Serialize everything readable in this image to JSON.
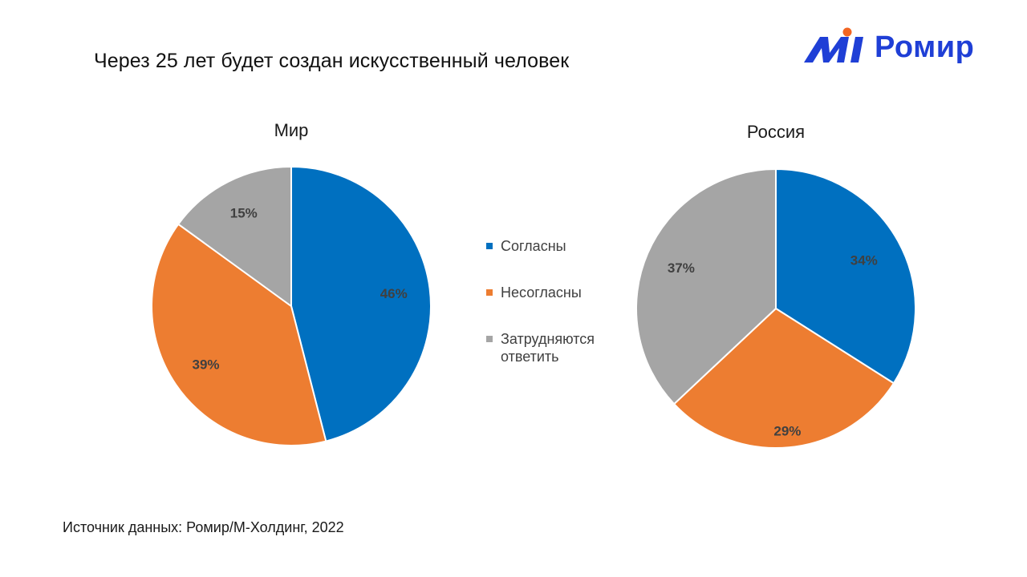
{
  "slide": {
    "title": "Через 25 лет будет создан искусственный человек",
    "source": "Источник данных: Ромир/М-Холдинг, 2022"
  },
  "logo": {
    "text": "Ромир",
    "icon": "romir-logo-icon",
    "mark_color": "#1f3fd6",
    "dot_color": "#f26522"
  },
  "legend": {
    "items": [
      {
        "label": "Согласны",
        "color": "#0070C0"
      },
      {
        "label": "Несогласны",
        "color": "#ED7D31"
      },
      {
        "label": "Затрудняются ответить",
        "color": "#A5A5A5"
      }
    ]
  },
  "chart_data": [
    {
      "type": "pie",
      "title": "Мир",
      "categories": [
        "Согласны",
        "Несогласны",
        "Затрудняются ответить"
      ],
      "values": [
        46,
        39,
        15
      ],
      "labels": [
        "46%",
        "39%",
        "15%"
      ],
      "colors": [
        "#0070C0",
        "#ED7D31",
        "#A5A5A5"
      ],
      "legend": "center-right"
    },
    {
      "type": "pie",
      "title": "Россия",
      "categories": [
        "Согласны",
        "Несогласны",
        "Затрудняются ответить"
      ],
      "values": [
        34,
        29,
        37
      ],
      "labels": [
        "34%",
        "29%",
        "37%"
      ],
      "colors": [
        "#0070C0",
        "#ED7D31",
        "#A5A5A5"
      ],
      "legend": "center-left"
    }
  ]
}
